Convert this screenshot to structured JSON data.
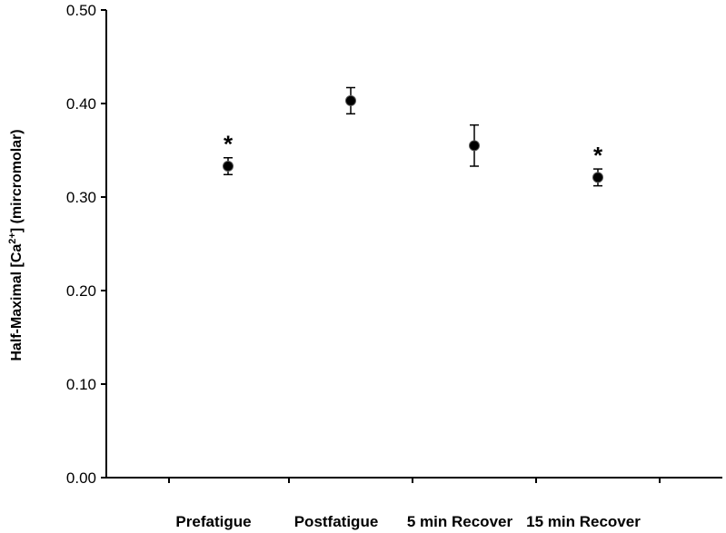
{
  "chart_data": {
    "type": "scatter",
    "categories": [
      "Prefatigue",
      "Postfatigue",
      "5 min Recover",
      "15 min Recover"
    ],
    "values": [
      0.333,
      0.403,
      0.355,
      0.321
    ],
    "error": [
      0.009,
      0.014,
      0.022,
      0.009
    ],
    "significance": [
      "*",
      "",
      "",
      "*"
    ],
    "ylabel_prefix": "Half-Maximal [Ca",
    "ylabel_sup": "2+",
    "ylabel_suffix": "] (mircromolar)",
    "ylim": [
      0,
      0.5
    ],
    "yticks": [
      "0.00",
      "0.10",
      "0.20",
      "0.30",
      "0.40",
      "0.50"
    ],
    "grid": false,
    "marker_color": "#000000"
  }
}
